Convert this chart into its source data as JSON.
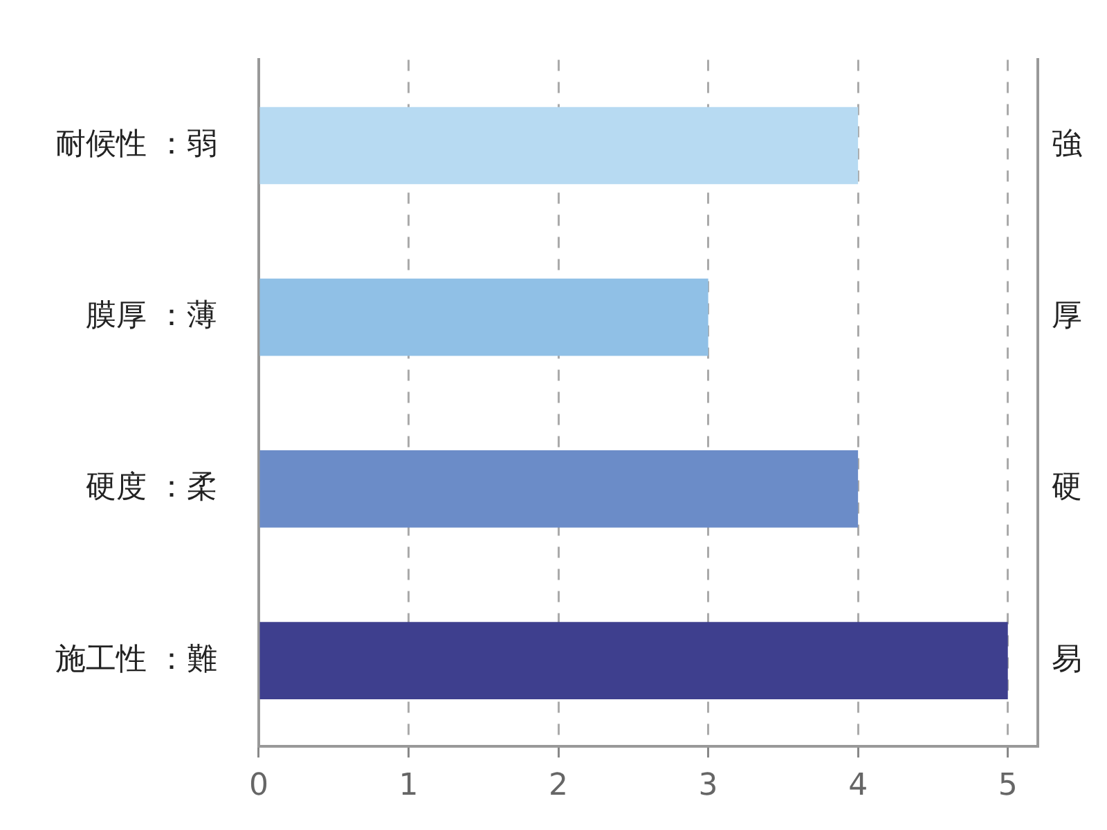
{
  "chart_data": {
    "type": "bar",
    "orientation": "horizontal",
    "categories": [
      "耐候性 ：弱",
      "膜厚 ：薄",
      "硬度 ：柔",
      "施工性 ：難"
    ],
    "y2_categories": [
      "強",
      "厚",
      "硬",
      "易"
    ],
    "values": [
      4,
      3,
      4,
      5
    ],
    "colors": [
      "#b7daf2",
      "#90c0e6",
      "#6b8cc8",
      "#3e3f8e"
    ],
    "xlim": [
      0,
      5.2
    ],
    "xticks": [
      0,
      1,
      2,
      3,
      4,
      5
    ],
    "grid": "x",
    "legend": false
  }
}
